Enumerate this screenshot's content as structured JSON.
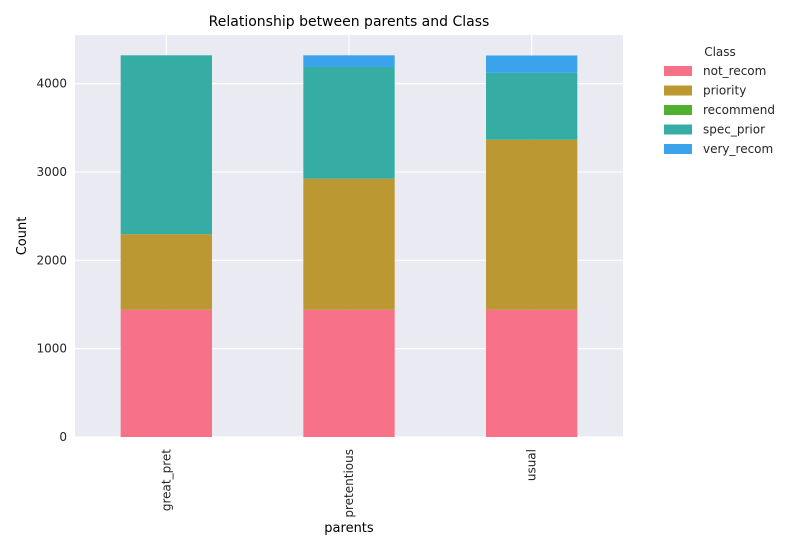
{
  "chart_data": {
    "type": "bar",
    "stacked": true,
    "title": "Relationship between parents and Class",
    "xlabel": "parents",
    "ylabel": "Count",
    "categories": [
      "great_pret",
      "pretentious",
      "usual"
    ],
    "ylim": [
      0,
      4550
    ],
    "yticks": [
      0,
      1000,
      2000,
      3000,
      4000
    ],
    "grid": true,
    "legend": {
      "title": "Class",
      "placement": "outside-top-right"
    },
    "series": [
      {
        "name": "not_recom",
        "color": "#f77189",
        "values": [
          1440,
          1440,
          1440
        ]
      },
      {
        "name": "priority",
        "color": "#bb9832",
        "values": [
          856,
          1484,
          1924
        ]
      },
      {
        "name": "recommend",
        "color": "#50b131",
        "values": [
          0,
          0,
          2
        ]
      },
      {
        "name": "spec_prior",
        "color": "#36ada4",
        "values": [
          2024,
          1264,
          756
        ]
      },
      {
        "name": "very_recom",
        "color": "#3ba3ec",
        "values": [
          0,
          132,
          196
        ]
      }
    ]
  }
}
